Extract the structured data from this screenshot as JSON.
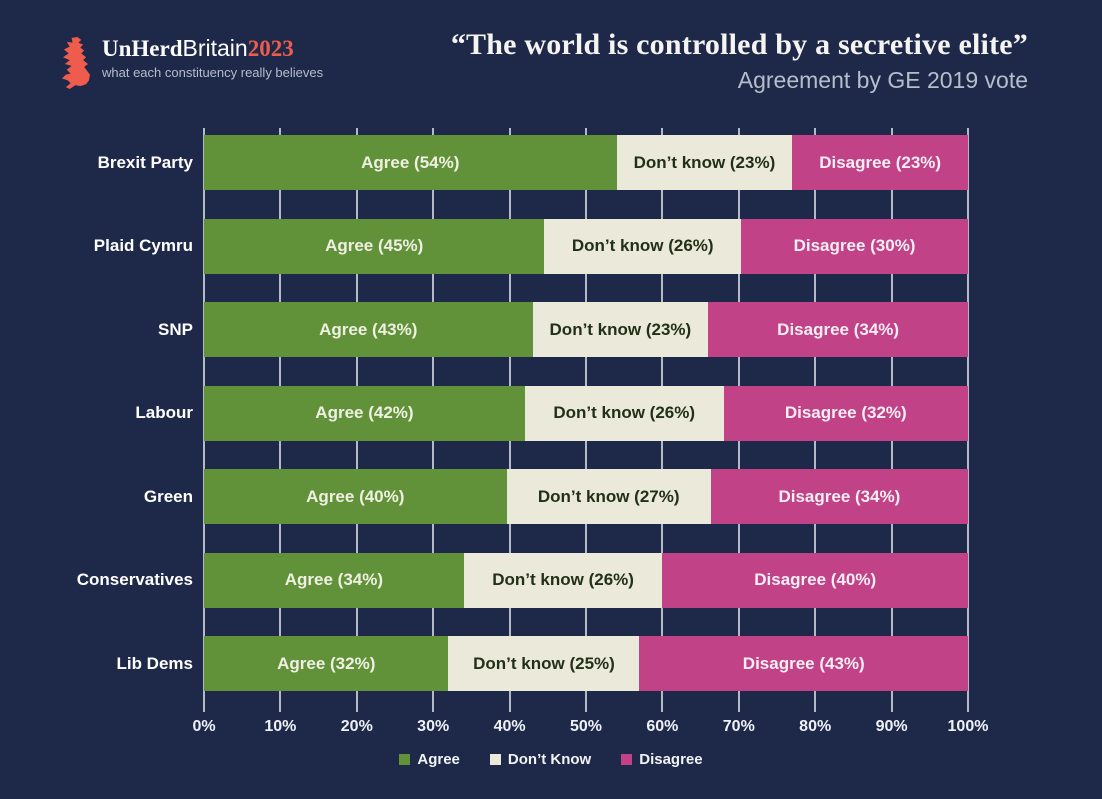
{
  "header": {
    "logo": {
      "brand_bold": "UnHerd",
      "brand_regular": "Britain",
      "brand_year": "2023",
      "tagline": "what each constituency really believes"
    },
    "title": "“The world is controlled by a secretive elite”",
    "subtitle": "Agreement by GE 2019 vote"
  },
  "colors": {
    "background": "#1e2949",
    "gridline": "#b3b9c6",
    "accent_coral": "#ee5c4d",
    "title_text": "#f5f4f1",
    "subtitle_text": "#b7bdcb",
    "axis_text": "#eef1f6",
    "legend_text": "#f2f3f5"
  },
  "chart_data": {
    "type": "bar",
    "orientation": "horizontal",
    "stacked": true,
    "title": "“The world is controlled by a secretive elite”",
    "subtitle": "Agreement by GE 2019 vote",
    "categories": [
      "Brexit Party",
      "Plaid Cymru",
      "SNP",
      "Labour",
      "Green",
      "Conservatives",
      "Lib Dems"
    ],
    "series": [
      {
        "key": "agree",
        "name": "Agree",
        "values": [
          54,
          45,
          43,
          42,
          40,
          34,
          32
        ],
        "color": "#61923a",
        "label_color": "#eff0e2"
      },
      {
        "key": "dont-know",
        "name": "Don’t know",
        "values": [
          23,
          26,
          23,
          26,
          27,
          26,
          25
        ],
        "color": "#ebe9d9",
        "label_color": "#233018"
      },
      {
        "key": "disagree",
        "name": "Disagree",
        "values": [
          23,
          30,
          34,
          32,
          34,
          40,
          43
        ],
        "color": "#c14286",
        "label_color": "#f7eef4"
      }
    ],
    "x_ticks": [
      "0%",
      "10%",
      "20%",
      "30%",
      "40%",
      "50%",
      "60%",
      "70%",
      "80%",
      "90%",
      "100%"
    ],
    "xlim": [
      0,
      100
    ],
    "grid": true,
    "legend_position": "bottom",
    "legend": [
      {
        "label": "Agree",
        "color": "#61923a"
      },
      {
        "label": "Don’t Know",
        "color": "#ebe9d9"
      },
      {
        "label": "Disagree",
        "color": "#c14286"
      }
    ]
  }
}
